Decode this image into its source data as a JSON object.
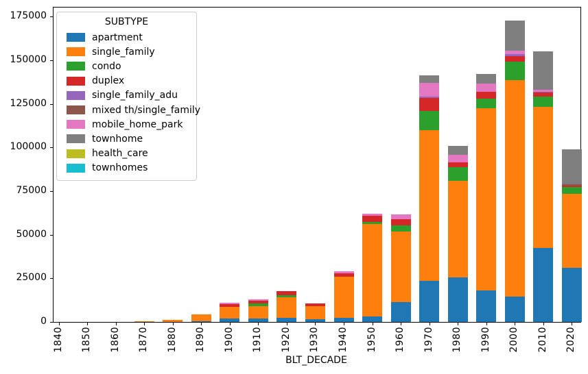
{
  "chart_data": {
    "type": "bar",
    "stacked": true,
    "xlabel": "BLT_DECADE",
    "ylabel": "",
    "ylim": [
      0,
      180200
    ],
    "yticks": [
      0,
      25000,
      50000,
      75000,
      100000,
      125000,
      150000,
      175000
    ],
    "grid": false,
    "legend_title": "SUBTYPE",
    "legend_position": "upper left",
    "categories": [
      "1840",
      "1850",
      "1860",
      "1870",
      "1880",
      "1890",
      "1900",
      "1910",
      "1920",
      "1930",
      "1940",
      "1950",
      "1960",
      "1970",
      "1980",
      "1990",
      "2000",
      "2010",
      "2020"
    ],
    "series": [
      {
        "name": "apartment",
        "color": "#1f77b4",
        "values": [
          0,
          0,
          0,
          0,
          0,
          400,
          2000,
          2000,
          2500,
          1600,
          2400,
          3300,
          11400,
          23600,
          25700,
          17900,
          14600,
          42500,
          31100
        ]
      },
      {
        "name": "single_family",
        "color": "#ff7f0e",
        "values": [
          0,
          0,
          0,
          400,
          1000,
          3900,
          6500,
          7200,
          11700,
          7600,
          23600,
          52700,
          40600,
          86400,
          55200,
          104600,
          123900,
          80900,
          42300
        ]
      },
      {
        "name": "condo",
        "color": "#2ca02c",
        "values": [
          0,
          0,
          0,
          0,
          0,
          0,
          0,
          1300,
          1200,
          0,
          0,
          1200,
          3300,
          10800,
          7900,
          5500,
          10500,
          5900,
          3900
        ]
      },
      {
        "name": "duplex",
        "color": "#d62728",
        "values": [
          0,
          0,
          0,
          0,
          0,
          0,
          1600,
          1700,
          2100,
          1300,
          2000,
          3500,
          3500,
          7500,
          2600,
          3900,
          3300,
          2400,
          800
        ]
      },
      {
        "name": "single_family_adu",
        "color": "#9467bd",
        "values": [
          0,
          0,
          0,
          0,
          0,
          0,
          0,
          0,
          0,
          0,
          0,
          0,
          0,
          1000,
          0,
          0,
          1300,
          400,
          0
        ]
      },
      {
        "name": "mixed th/single_family",
        "color": "#8c564b",
        "values": [
          0,
          0,
          0,
          0,
          0,
          0,
          0,
          0,
          0,
          0,
          0,
          0,
          0,
          0,
          0,
          0,
          0,
          0,
          800
        ]
      },
      {
        "name": "mobile_home_park",
        "color": "#e377c2",
        "values": [
          0,
          0,
          0,
          0,
          0,
          0,
          800,
          900,
          0,
          0,
          1000,
          1200,
          2800,
          7600,
          4300,
          4700,
          2000,
          1000,
          0
        ]
      },
      {
        "name": "townhome",
        "color": "#7f7f7f",
        "values": [
          0,
          0,
          0,
          0,
          0,
          0,
          0,
          0,
          0,
          0,
          0,
          0,
          0,
          4500,
          5300,
          5500,
          17000,
          21800,
          20000
        ]
      },
      {
        "name": "health_care",
        "color": "#bcbd22",
        "values": [
          0,
          0,
          0,
          0,
          0,
          0,
          0,
          0,
          0,
          0,
          0,
          0,
          0,
          0,
          0,
          0,
          0,
          0,
          0
        ]
      },
      {
        "name": "townhomes",
        "color": "#17becf",
        "values": [
          0,
          0,
          0,
          0,
          0,
          0,
          0,
          0,
          0,
          0,
          0,
          0,
          0,
          0,
          0,
          0,
          0,
          0,
          0
        ]
      }
    ]
  }
}
